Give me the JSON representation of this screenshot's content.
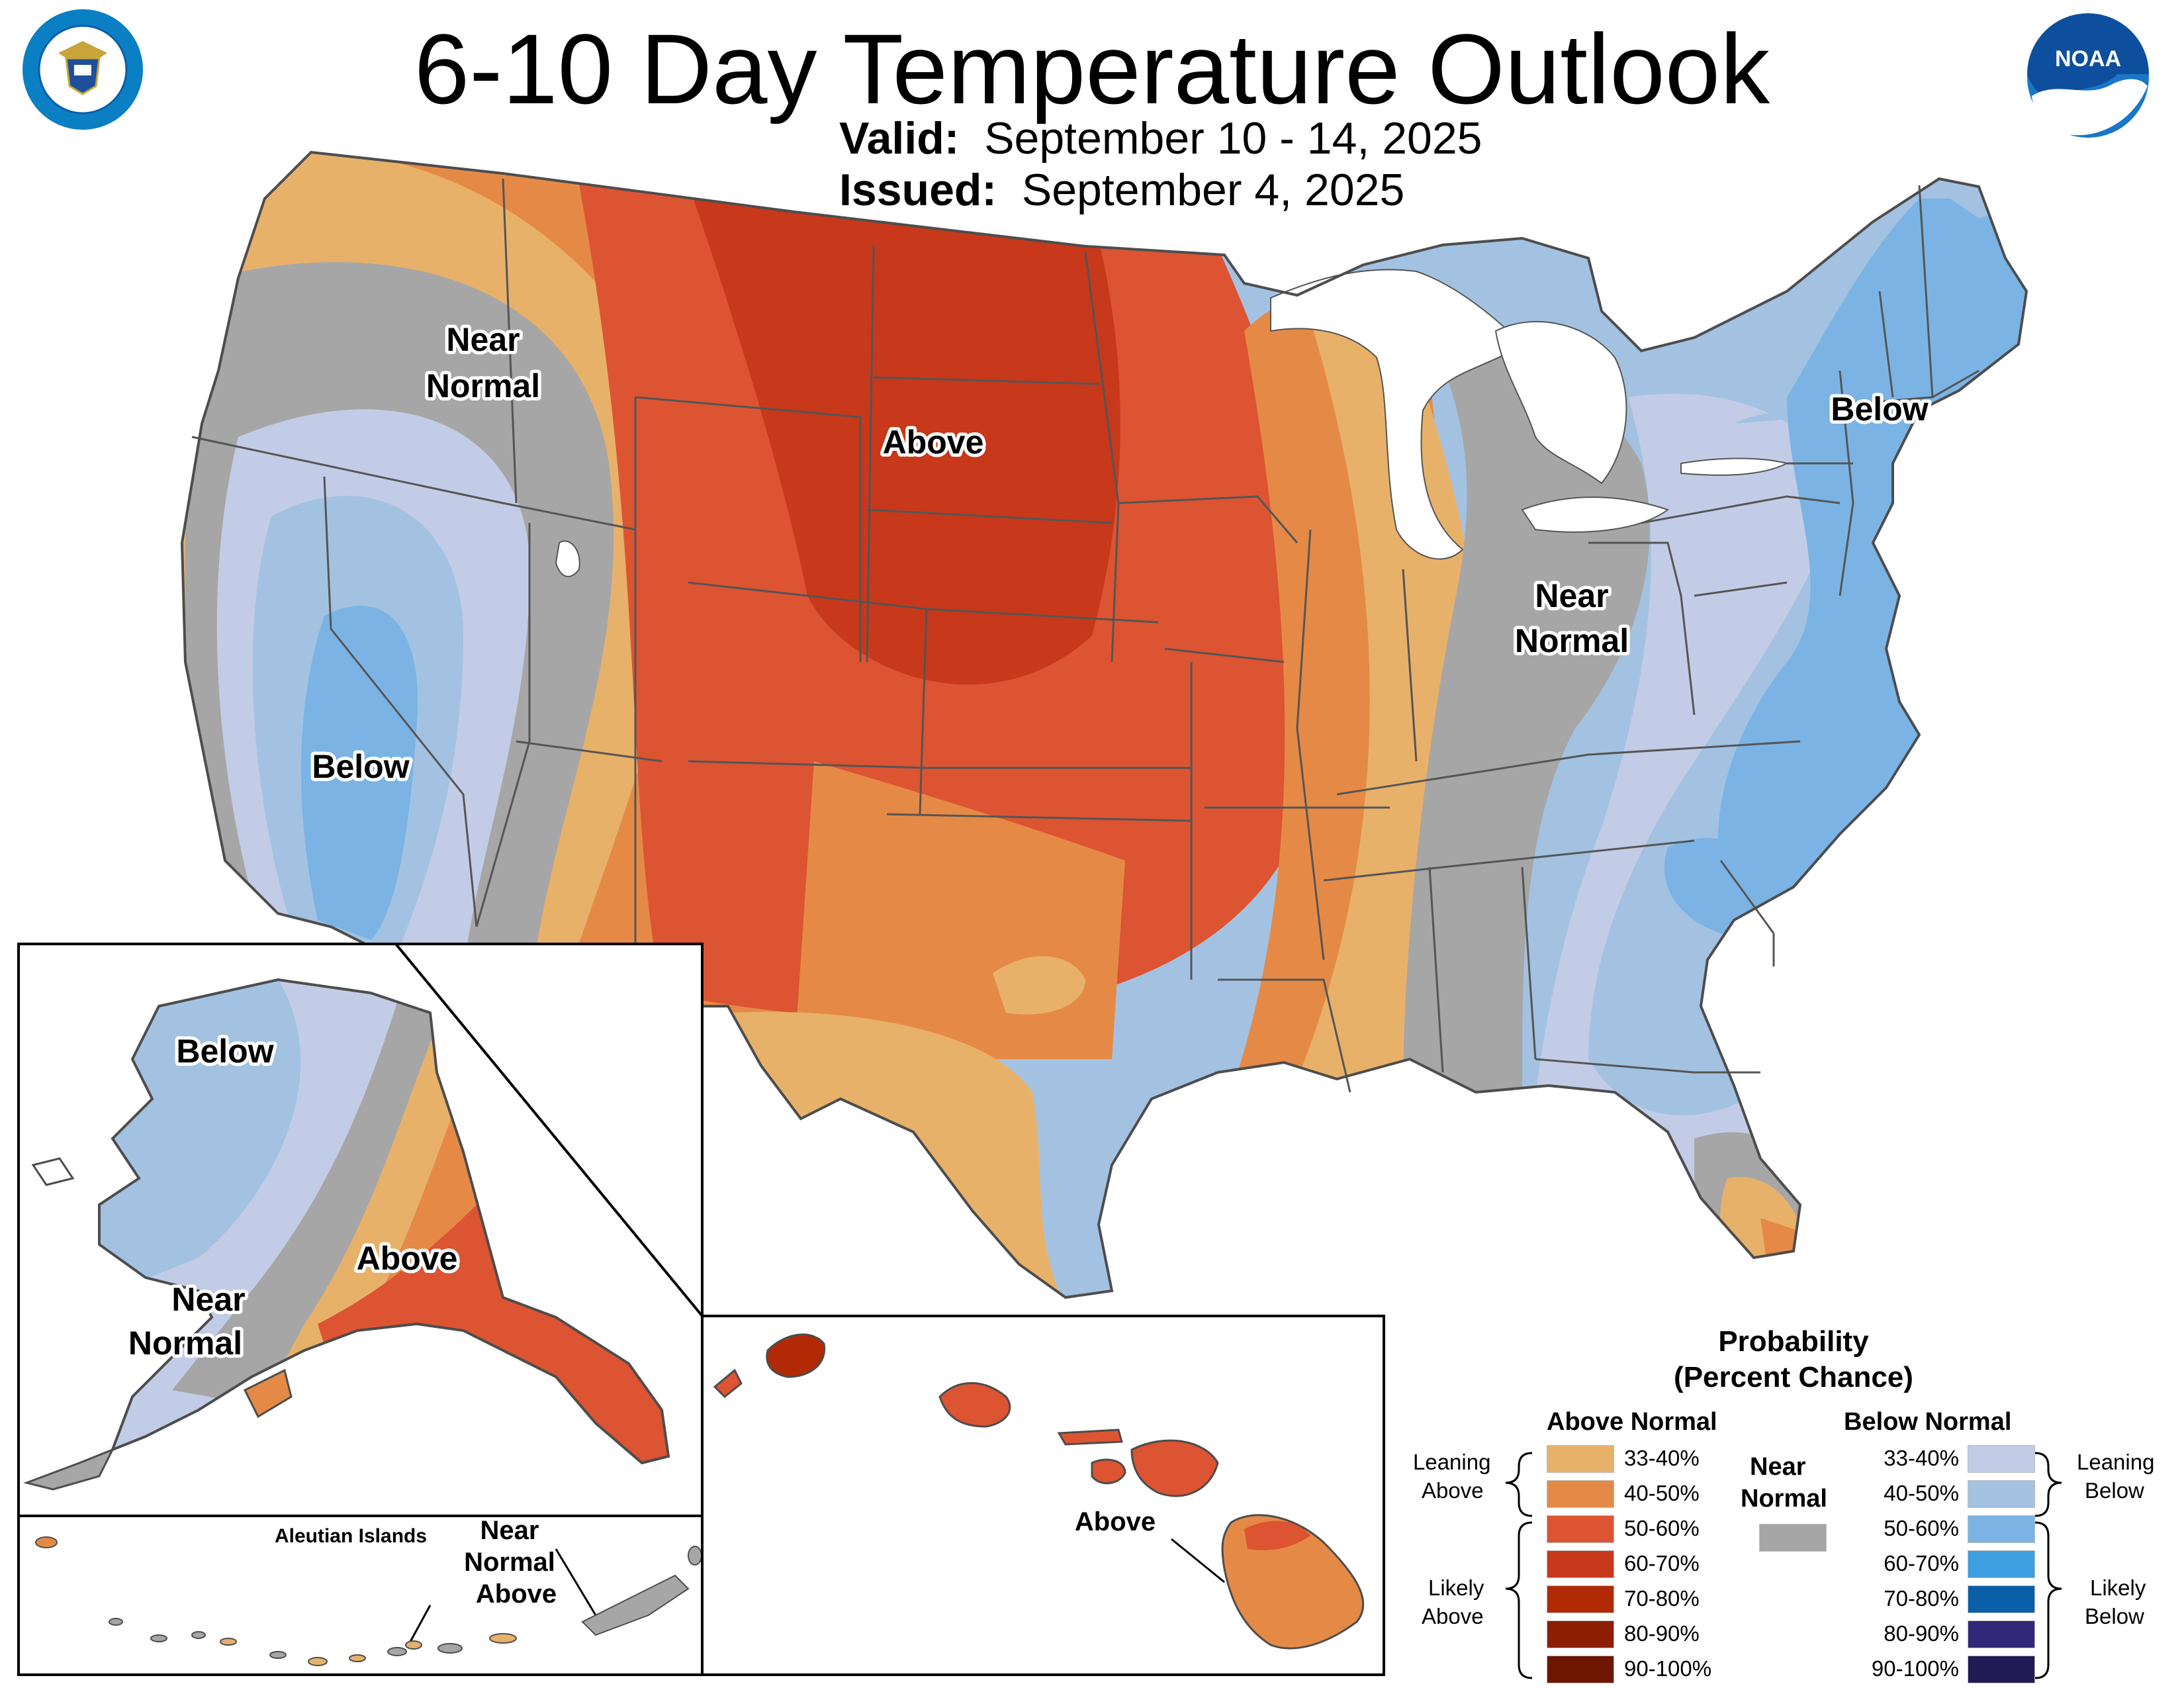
{
  "header": {
    "title": "6-10 Day Temperature Outlook",
    "valid_label": "Valid:",
    "valid_value": "September 10 - 14, 2025",
    "issued_label": "Issued:",
    "issued_value": "September 4, 2025"
  },
  "logos": {
    "left": "department-of-commerce-seal",
    "right": "noaa-logo",
    "right_text": "NOAA"
  },
  "regions": {
    "conus_near_normal_west": [
      "Near",
      "Normal"
    ],
    "conus_above": "Above",
    "conus_below_west": "Below",
    "conus_below_east": "Below",
    "conus_near_normal_east": [
      "Near",
      "Normal"
    ],
    "alaska_below": "Below",
    "alaska_above": "Above",
    "alaska_near_normal": [
      "Near",
      "Normal"
    ],
    "aleutian_title": "Aleutian Islands",
    "aleutian_label": [
      "Near",
      "Normal",
      "Above"
    ],
    "hawaii_above": "Above"
  },
  "legend": {
    "title_1": "Probability",
    "title_2": "(Percent Chance)",
    "above_header": "Above Normal",
    "below_header": "Below Normal",
    "near_header_1": "Near",
    "near_header_2": "Normal",
    "near_color": "#a6a6a6",
    "leaning_above": [
      "Leaning",
      "Above"
    ],
    "likely_above": [
      "Likely",
      "Above"
    ],
    "leaning_below": [
      "Leaning",
      "Below"
    ],
    "likely_below": [
      "Likely",
      "Below"
    ],
    "above": [
      {
        "range": "33-40%",
        "color": "#e8b16a"
      },
      {
        "range": "40-50%",
        "color": "#e58a46"
      },
      {
        "range": "50-60%",
        "color": "#dc5432"
      },
      {
        "range": "60-70%",
        "color": "#c8381a"
      },
      {
        "range": "70-80%",
        "color": "#b22a05"
      },
      {
        "range": "80-90%",
        "color": "#8e1e02"
      },
      {
        "range": "90-100%",
        "color": "#6e1600"
      }
    ],
    "below": [
      {
        "range": "33-40%",
        "color": "#c3cce6"
      },
      {
        "range": "40-50%",
        "color": "#a3c2e2"
      },
      {
        "range": "50-60%",
        "color": "#7bb4e4"
      },
      {
        "range": "60-70%",
        "color": "#3d9fe0"
      },
      {
        "range": "70-80%",
        "color": "#0b5ea8"
      },
      {
        "range": "80-90%",
        "color": "#302778"
      },
      {
        "range": "90-100%",
        "color": "#201a55"
      }
    ]
  }
}
